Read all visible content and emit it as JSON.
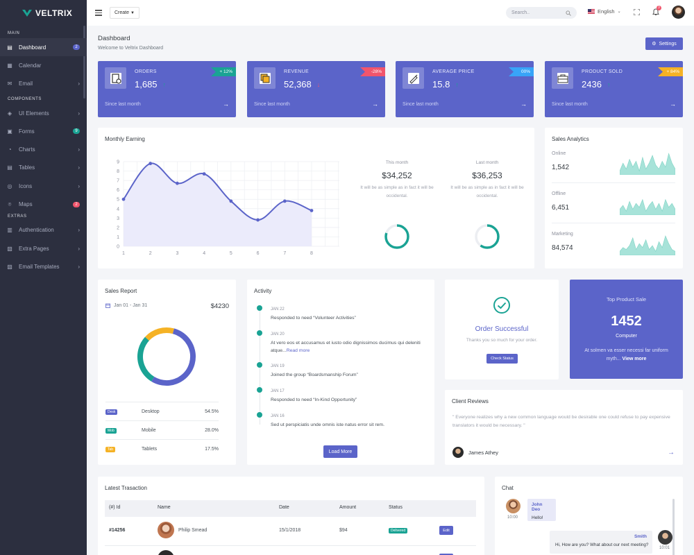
{
  "brand": {
    "name": "VELTRIX"
  },
  "sidebar": {
    "sections": [
      "MAIN",
      "COMPONENTS",
      "EXTRAS"
    ],
    "items": [
      {
        "label": "Dashboard",
        "icon": "dashboard-icon",
        "badge": "2",
        "badge_color": "#5b64c9"
      },
      {
        "label": "Calendar",
        "icon": "calendar-icon"
      },
      {
        "label": "Email",
        "icon": "email-icon",
        "arrow": true
      },
      {
        "label": "UI Elements",
        "icon": "cube-icon",
        "arrow": true
      },
      {
        "label": "Forms",
        "icon": "forms-icon",
        "badge": "9",
        "badge_color": "#1aa394"
      },
      {
        "label": "Charts",
        "icon": "charts-icon",
        "arrow": true
      },
      {
        "label": "Tables",
        "icon": "tables-icon",
        "arrow": true
      },
      {
        "label": "Icons",
        "icon": "icons-icon",
        "arrow": true
      },
      {
        "label": "Maps",
        "icon": "map-pin-icon",
        "badge": "2",
        "badge_color": "#f1556c"
      },
      {
        "label": "Authentication",
        "icon": "lock-icon",
        "arrow": true
      },
      {
        "label": "Extra Pages",
        "icon": "pages-icon",
        "arrow": true
      },
      {
        "label": "Email Templates",
        "icon": "template-icon",
        "arrow": true
      }
    ]
  },
  "topbar": {
    "create_label": "Create",
    "search_placeholder": "Search..",
    "language": "English",
    "notification_count": "3"
  },
  "page": {
    "title": "Dashboard",
    "subtitle": "Welcome to Veltrix Dashboard",
    "settings_label": "Settings"
  },
  "stats": [
    {
      "title": "ORDERS",
      "value": "1,685",
      "trend": "up",
      "badge": "+ 12%",
      "badge_color": "#1aa394",
      "footer": "Since last month",
      "icon": "cart-icon"
    },
    {
      "title": "REVENUE",
      "value": "52,368",
      "trend": "down",
      "badge": "-28%",
      "badge_color": "#f1556c",
      "footer": "Since last month",
      "icon": "copy-icon"
    },
    {
      "title": "AVERAGE PRICE",
      "value": "15.8",
      "trend": "up",
      "badge": "00%",
      "badge_color": "#38a4f8",
      "footer": "Since last month",
      "icon": "tag-icon"
    },
    {
      "title": "PRODUCT SOLD",
      "value": "2436",
      "trend": "up",
      "badge": "+ 84%",
      "badge_color": "#f5b225",
      "footer": "Since last month",
      "icon": "briefcase-icon"
    }
  ],
  "monthly": {
    "title": "Monthly Earning",
    "this_month": {
      "label": "This month",
      "value": "$34,252",
      "desc": "It will be as simple as in fact it will be occidental.",
      "percent": 80
    },
    "last_month": {
      "label": "Last month",
      "value": "$36,253",
      "desc": "It will be as simple as in fact it will be occidental.",
      "percent": 60
    }
  },
  "chart_data": {
    "type": "area",
    "x": [
      1,
      2,
      3,
      4,
      5,
      6,
      7,
      8
    ],
    "series": [
      {
        "values": [
          5,
          8.8,
          6.7,
          7.7,
          4.8,
          2.8,
          4.8,
          3.8
        ]
      }
    ],
    "yticks": [
      0,
      1,
      2,
      3,
      4,
      5,
      6,
      7,
      8,
      9
    ],
    "xticks": [
      1,
      2,
      3,
      4,
      5,
      6,
      7,
      8
    ],
    "ylim": [
      0,
      9
    ],
    "xlim": [
      1,
      8
    ],
    "grid": true,
    "color": "#5b64c9"
  },
  "analytics": {
    "title": "Sales Analytics",
    "rows": [
      {
        "label": "Online",
        "value": "1,542"
      },
      {
        "label": "Offline",
        "value": "6,451"
      },
      {
        "label": "Marketing",
        "value": "84,574"
      }
    ]
  },
  "sales_report": {
    "title": "Sales Report",
    "date_range": "Jan 01 - Jan 31",
    "total": "$4230",
    "rows": [
      {
        "tag": "Desk",
        "name": "Desktop",
        "value": "54.5%",
        "color": "#5b64c9",
        "percent": 54.5
      },
      {
        "tag": "Mob",
        "name": "Mobile",
        "value": "28.0%",
        "color": "#1aa394",
        "percent": 28.0
      },
      {
        "tag": "Tab",
        "name": "Tablets",
        "value": "17.5%",
        "color": "#f5b225",
        "percent": 17.5
      }
    ]
  },
  "activity": {
    "title": "Activity",
    "items": [
      {
        "date": "JAN 22",
        "text": "Responded to need “Volunteer Activities”"
      },
      {
        "date": "JAN 20",
        "text": "At vero eos et accusamus et iusto odio dignissimos ducimus qui deleniti atque...",
        "link": "Read more"
      },
      {
        "date": "JAN 19",
        "text": "Joined the group “Boardsmanship Forum”"
      },
      {
        "date": "JAN 17",
        "text": "Responded to need “In-Kind Opportunity”"
      },
      {
        "date": "JAN 16",
        "text": "Sed ut perspiciatis unde omnis iste natus error sit rem."
      }
    ],
    "button": "Load More"
  },
  "order": {
    "title": "Order Successful",
    "text": "Thanks you so much for your order.",
    "button": "Check Status"
  },
  "top_product": {
    "label": "Top Product Sale",
    "value": "1452",
    "name": "Computer",
    "desc": "At solmen va esser necessi far uniform myth...",
    "link": "View more"
  },
  "reviews": {
    "title": "Client Reviews",
    "text": "\" Everyone realizes why a new common language would be desirable one could refuse to pay expensive translators it would be necessary. \"",
    "author": "James Athey"
  },
  "transactions": {
    "title": "Latest Trasaction",
    "columns": [
      "(#) Id",
      "Name",
      "Date",
      "Amount",
      "Status"
    ],
    "rows": [
      {
        "id": "#14256",
        "name": "Philip Smead",
        "date": "15/1/2018",
        "amount": "$94",
        "status": "Delivered",
        "action": "Edit"
      }
    ]
  },
  "chat": {
    "title": "Chat",
    "messages": [
      {
        "name": "John Deo",
        "text": "Hello!",
        "time": "10:00",
        "side": "left"
      },
      {
        "name": "Smith",
        "text": "Hi, How are you? What about our next meeting?",
        "time": "10:01",
        "side": "right"
      }
    ]
  }
}
